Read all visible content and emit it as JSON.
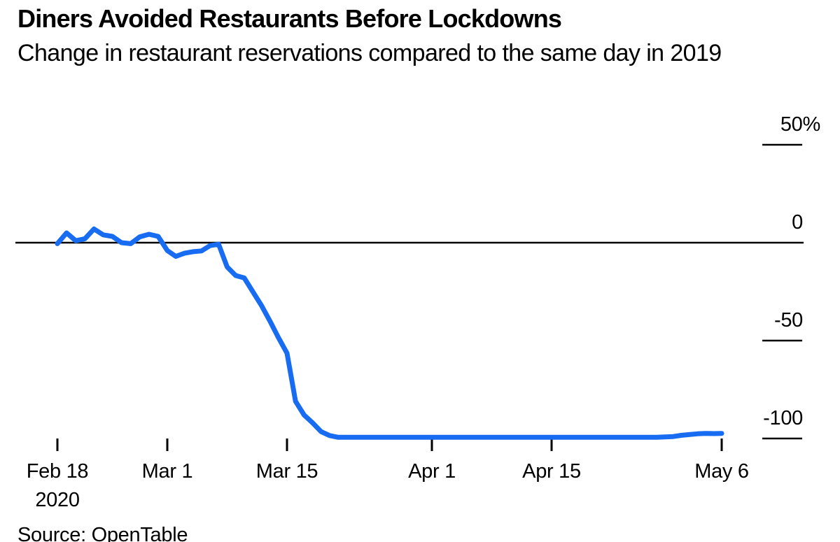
{
  "chart_data": {
    "type": "line",
    "title": "Diners Avoided Restaurants Before Lockdowns",
    "subtitle": "Change in restaurant reservations compared to the same day in 2019",
    "source": "Source: OpenTable",
    "unit": "%",
    "x_start": "Feb 18 2020",
    "x_end": "May 6 2020",
    "x_step": "daily",
    "ylim": [
      -112,
      62
    ],
    "zero_line": true,
    "grid": false,
    "legend": "none",
    "line_color": "#186cf2",
    "axis_color": "#000000",
    "x_ticks": [
      {
        "day": 0,
        "label": "Feb 18",
        "sublabel": "2020"
      },
      {
        "day": 12,
        "label": "Mar 1",
        "sublabel": ""
      },
      {
        "day": 26,
        "label": "Mar 15",
        "sublabel": ""
      },
      {
        "day": 43,
        "label": "Apr 1",
        "sublabel": ""
      },
      {
        "day": 57,
        "label": "Apr 15",
        "sublabel": ""
      },
      {
        "day": 78,
        "label": "May 6",
        "sublabel": ""
      }
    ],
    "y_ticks": [
      {
        "value": 50,
        "label": "50%"
      },
      {
        "value": 0,
        "label": "0"
      },
      {
        "value": -50,
        "label": "-50"
      },
      {
        "value": -100,
        "label": "-100"
      }
    ],
    "values": [
      -0.5,
      5,
      1,
      2,
      7,
      4,
      3.2,
      0,
      -0.5,
      3,
      4.3,
      3.2,
      -4,
      -7,
      -5.4,
      -4.6,
      -4.2,
      -1.5,
      -0.8,
      -12.4,
      -16.8,
      -18,
      -25,
      -32,
      -40,
      -48.5,
      -56.4,
      -81,
      -88,
      -92,
      -96.5,
      -98.5,
      -99.4,
      -99.4,
      -99.4,
      -99.4,
      -99.4,
      -99.4,
      -99.4,
      -99.4,
      -99.4,
      -99.4,
      -99.4,
      -99.4,
      -99.4,
      -99.4,
      -99.4,
      -99.4,
      -99.4,
      -99.4,
      -99.4,
      -99.4,
      -99.4,
      -99.4,
      -99.4,
      -99.4,
      -99.4,
      -99.4,
      -99.4,
      -99.4,
      -99.4,
      -99.4,
      -99.4,
      -99.4,
      -99.4,
      -99.4,
      -99.4,
      -99.4,
      -99.4,
      -99.4,
      -99.4,
      -99.2,
      -99,
      -98.4,
      -98,
      -97.6,
      -97.4,
      -97.5,
      -97.4
    ]
  }
}
